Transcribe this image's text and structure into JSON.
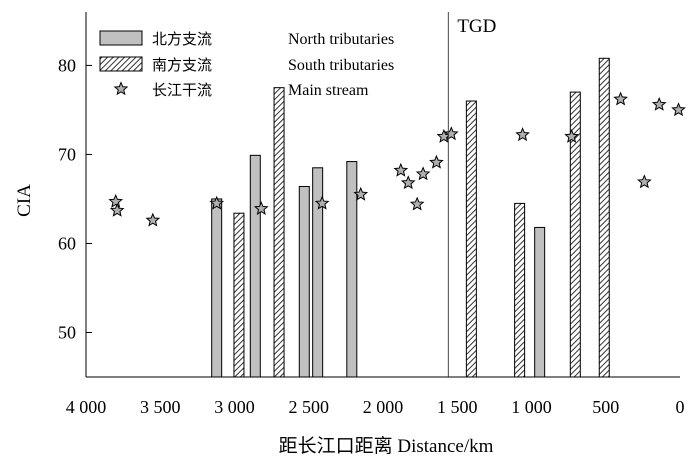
{
  "chart_data": {
    "type": "bar",
    "xlabel": "距长江口距离 Distance/km",
    "ylabel": "CIA",
    "xlim": [
      4000,
      0
    ],
    "ylim": [
      45,
      86
    ],
    "x_ticks": [
      {
        "value": 4000,
        "label": "4 000"
      },
      {
        "value": 3500,
        "label": "3 500"
      },
      {
        "value": 3000,
        "label": "3 000"
      },
      {
        "value": 2500,
        "label": "2 500"
      },
      {
        "value": 2000,
        "label": "2 000"
      },
      {
        "value": 1500,
        "label": "1 500"
      },
      {
        "value": 1000,
        "label": "1 000"
      },
      {
        "value": 500,
        "label": "500"
      },
      {
        "value": 0,
        "label": "0"
      }
    ],
    "y_ticks": [
      {
        "value": 50,
        "label": "50"
      },
      {
        "value": 60,
        "label": "60"
      },
      {
        "value": 70,
        "label": "70"
      },
      {
        "value": 80,
        "label": "80"
      }
    ],
    "annotation": {
      "label": "TGD",
      "x": 1560
    },
    "legend": {
      "placement": "top-left",
      "entries": [
        {
          "series": "north",
          "zh": "北方支流",
          "en": "North tributaries"
        },
        {
          "series": "south",
          "zh": "南方支流",
          "en": "South tributaries"
        },
        {
          "series": "main",
          "zh": "长江干流",
          "en": "Main stream"
        }
      ]
    },
    "series": [
      {
        "key": "north",
        "name": "北方支流 North tributaries",
        "kind": "bar",
        "fill": "#c0c0c0",
        "points": [
          {
            "x": 3120,
            "y": 65.0
          },
          {
            "x": 2860,
            "y": 69.9
          },
          {
            "x": 2530,
            "y": 66.4
          },
          {
            "x": 2440,
            "y": 68.5
          },
          {
            "x": 2210,
            "y": 69.2
          },
          {
            "x": 945,
            "y": 61.8
          }
        ]
      },
      {
        "key": "south",
        "name": "南方支流 South tributaries",
        "kind": "bar",
        "fill": "hatch",
        "points": [
          {
            "x": 2970,
            "y": 63.4
          },
          {
            "x": 2700,
            "y": 77.5
          },
          {
            "x": 1405,
            "y": 76.0
          },
          {
            "x": 1080,
            "y": 64.5
          },
          {
            "x": 705,
            "y": 77.0
          },
          {
            "x": 510,
            "y": 80.8
          }
        ]
      },
      {
        "key": "main",
        "name": "长江干流 Main stream",
        "kind": "scatter",
        "marker": "star",
        "fill": "#b0b0b0",
        "points": [
          {
            "x": 3800,
            "y": 64.7
          },
          {
            "x": 3790,
            "y": 63.7
          },
          {
            "x": 3550,
            "y": 62.6
          },
          {
            "x": 3120,
            "y": 64.5
          },
          {
            "x": 2820,
            "y": 63.9
          },
          {
            "x": 2410,
            "y": 64.5
          },
          {
            "x": 2150,
            "y": 65.5
          },
          {
            "x": 1880,
            "y": 68.2
          },
          {
            "x": 1830,
            "y": 66.8
          },
          {
            "x": 1770,
            "y": 64.4
          },
          {
            "x": 1730,
            "y": 67.8
          },
          {
            "x": 1640,
            "y": 69.1
          },
          {
            "x": 1590,
            "y": 72.0
          },
          {
            "x": 1540,
            "y": 72.3
          },
          {
            "x": 1060,
            "y": 72.2
          },
          {
            "x": 730,
            "y": 72.0
          },
          {
            "x": 400,
            "y": 76.2
          },
          {
            "x": 240,
            "y": 66.9
          },
          {
            "x": 140,
            "y": 75.6
          },
          {
            "x": 10,
            "y": 75.0
          }
        ]
      }
    ]
  }
}
